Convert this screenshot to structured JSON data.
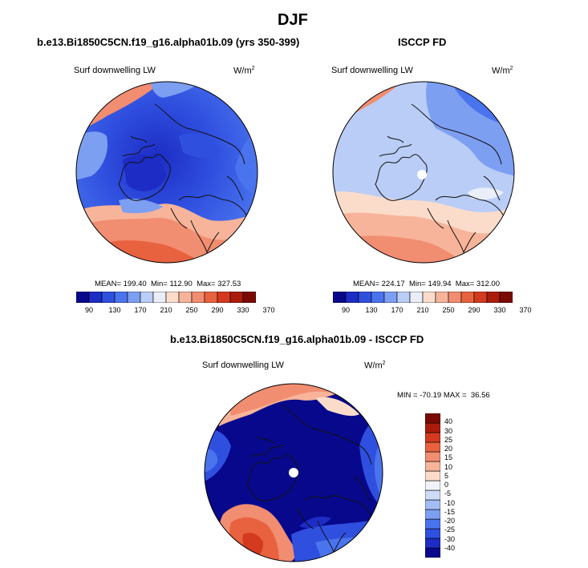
{
  "figure": {
    "title": "DJF",
    "left_panel": {
      "title": "b.e13.Bi1850C5CN.f19_g16.alpha01b.09 (yrs 350-399)",
      "variable": "Surf downwelling LW",
      "units_base": "W/m",
      "units_exp": "2",
      "stats": "MEAN= 199.40  Min= 112.90  Max= 327.53"
    },
    "right_panel": {
      "title": "ISCCP FD",
      "variable": "Surf downwelling LW",
      "units_base": "W/m",
      "units_exp": "2",
      "stats": "MEAN= 224.17  Min= 149.94  Max= 312.00"
    },
    "diff_panel": {
      "title": "b.e13.Bi1850C5CN.f19_g16.alpha01b.09 - ISCCP FD",
      "variable": "Surf downwelling LW",
      "units_base": "W/m",
      "units_exp": "2",
      "stats": "MIN = -70.19 MAX =  36.56"
    }
  },
  "colorbar_abs": {
    "colors": [
      "#08088c",
      "#1c2cc4",
      "#2f4fdf",
      "#4a73ee",
      "#7d9ff2",
      "#b9cdf6",
      "#e9eef8",
      "#fbdccb",
      "#f7b49a",
      "#f18d70",
      "#e8623f",
      "#d33a1f",
      "#ab1b0c",
      "#7a0a04"
    ],
    "labels": [
      "90",
      "130",
      "170",
      "210",
      "250",
      "290",
      "330",
      "370"
    ]
  },
  "colorbar_diff": {
    "colors": [
      "#08088c",
      "#1c2cc4",
      "#2f4fdf",
      "#4a73ee",
      "#7d9ff2",
      "#a3bcf4",
      "#cfdcf8",
      "#f1f3f8",
      "#fbdccb",
      "#f7b49a",
      "#f18d70",
      "#e8623f",
      "#d33a1f",
      "#ab1b0c",
      "#7a0a04"
    ],
    "labels": [
      "-40",
      "-30",
      "-25",
      "-20",
      "-15",
      "-10",
      "-5",
      "0",
      "5",
      "10",
      "15",
      "20",
      "25",
      "30",
      "40"
    ]
  }
}
